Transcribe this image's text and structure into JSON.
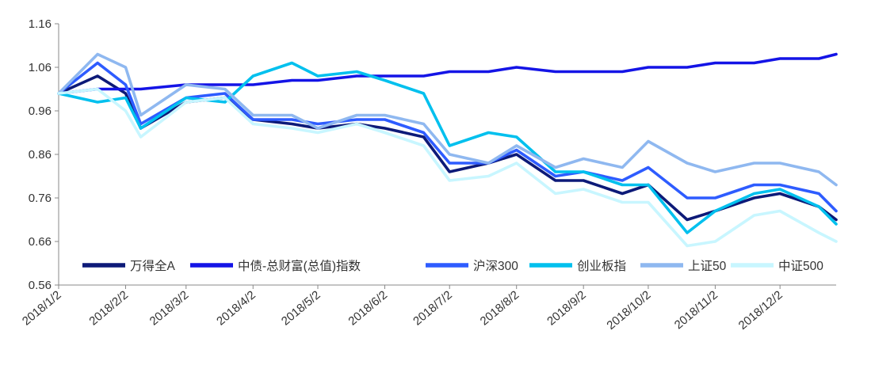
{
  "chart_data": {
    "type": "line",
    "title": "",
    "xlabel": "",
    "ylabel": "",
    "ylim": [
      0.56,
      1.16
    ],
    "yticks": [
      "1.16",
      "1.06",
      "0.96",
      "0.86",
      "0.76",
      "0.66",
      "0.56"
    ],
    "xticks": [
      "2018/1/2",
      "2018/2/2",
      "2018/3/2",
      "2018/4/2",
      "2018/5/2",
      "2018/6/2",
      "2018/7/2",
      "2018/8/2",
      "2018/9/2",
      "2018/10/2",
      "2018/11/2",
      "2018/12/2"
    ],
    "grid": false,
    "legend_position": "bottom",
    "x": [
      "2018/1/2",
      "2018/1/20",
      "2018/2/2",
      "2018/2/9",
      "2018/3/2",
      "2018/3/20",
      "2018/4/2",
      "2018/4/20",
      "2018/5/2",
      "2018/5/20",
      "2018/6/2",
      "2018/6/20",
      "2018/7/2",
      "2018/7/20",
      "2018/8/2",
      "2018/8/20",
      "2018/9/2",
      "2018/9/20",
      "2018/10/2",
      "2018/10/20",
      "2018/11/2",
      "2018/11/20",
      "2018/12/2",
      "2018/12/20",
      "2018/12/28"
    ],
    "series": [
      {
        "name": "万得全A",
        "color": "#0d1a78",
        "values": [
          1.0,
          1.04,
          1.0,
          0.92,
          0.98,
          0.99,
          0.94,
          0.93,
          0.92,
          0.93,
          0.92,
          0.9,
          0.82,
          0.84,
          0.86,
          0.8,
          0.8,
          0.77,
          0.79,
          0.71,
          0.73,
          0.76,
          0.77,
          0.74,
          0.71
        ]
      },
      {
        "name": "中债-总财富(总值)指数",
        "color": "#1414e6",
        "values": [
          1.0,
          1.01,
          1.01,
          1.01,
          1.02,
          1.02,
          1.02,
          1.03,
          1.03,
          1.04,
          1.04,
          1.04,
          1.05,
          1.05,
          1.06,
          1.05,
          1.05,
          1.05,
          1.06,
          1.06,
          1.07,
          1.07,
          1.08,
          1.08,
          1.09
        ]
      },
      {
        "name": "沪深300",
        "color": "#2e5cff",
        "values": [
          1.0,
          1.07,
          1.02,
          0.93,
          0.99,
          1.0,
          0.94,
          0.94,
          0.93,
          0.94,
          0.94,
          0.91,
          0.84,
          0.84,
          0.87,
          0.81,
          0.82,
          0.8,
          0.83,
          0.76,
          0.76,
          0.79,
          0.79,
          0.77,
          0.73
        ]
      },
      {
        "name": "创业板指",
        "color": "#00c0ee",
        "values": [
          1.0,
          0.98,
          0.99,
          0.92,
          0.99,
          0.98,
          1.04,
          1.07,
          1.04,
          1.05,
          1.03,
          1.0,
          0.88,
          0.91,
          0.9,
          0.82,
          0.82,
          0.79,
          0.79,
          0.68,
          0.73,
          0.77,
          0.78,
          0.74,
          0.7
        ]
      },
      {
        "name": "上证50",
        "color": "#8fb8f0",
        "values": [
          1.0,
          1.09,
          1.06,
          0.95,
          1.02,
          1.01,
          0.95,
          0.95,
          0.92,
          0.95,
          0.95,
          0.93,
          0.86,
          0.84,
          0.88,
          0.83,
          0.85,
          0.83,
          0.89,
          0.84,
          0.82,
          0.84,
          0.84,
          0.82,
          0.79
        ]
      },
      {
        "name": "中证500",
        "color": "#c8f6ff",
        "values": [
          1.0,
          1.01,
          0.96,
          0.9,
          0.98,
          0.99,
          0.93,
          0.92,
          0.91,
          0.93,
          0.91,
          0.88,
          0.8,
          0.81,
          0.84,
          0.77,
          0.78,
          0.75,
          0.75,
          0.65,
          0.66,
          0.72,
          0.73,
          0.68,
          0.66
        ]
      }
    ]
  }
}
